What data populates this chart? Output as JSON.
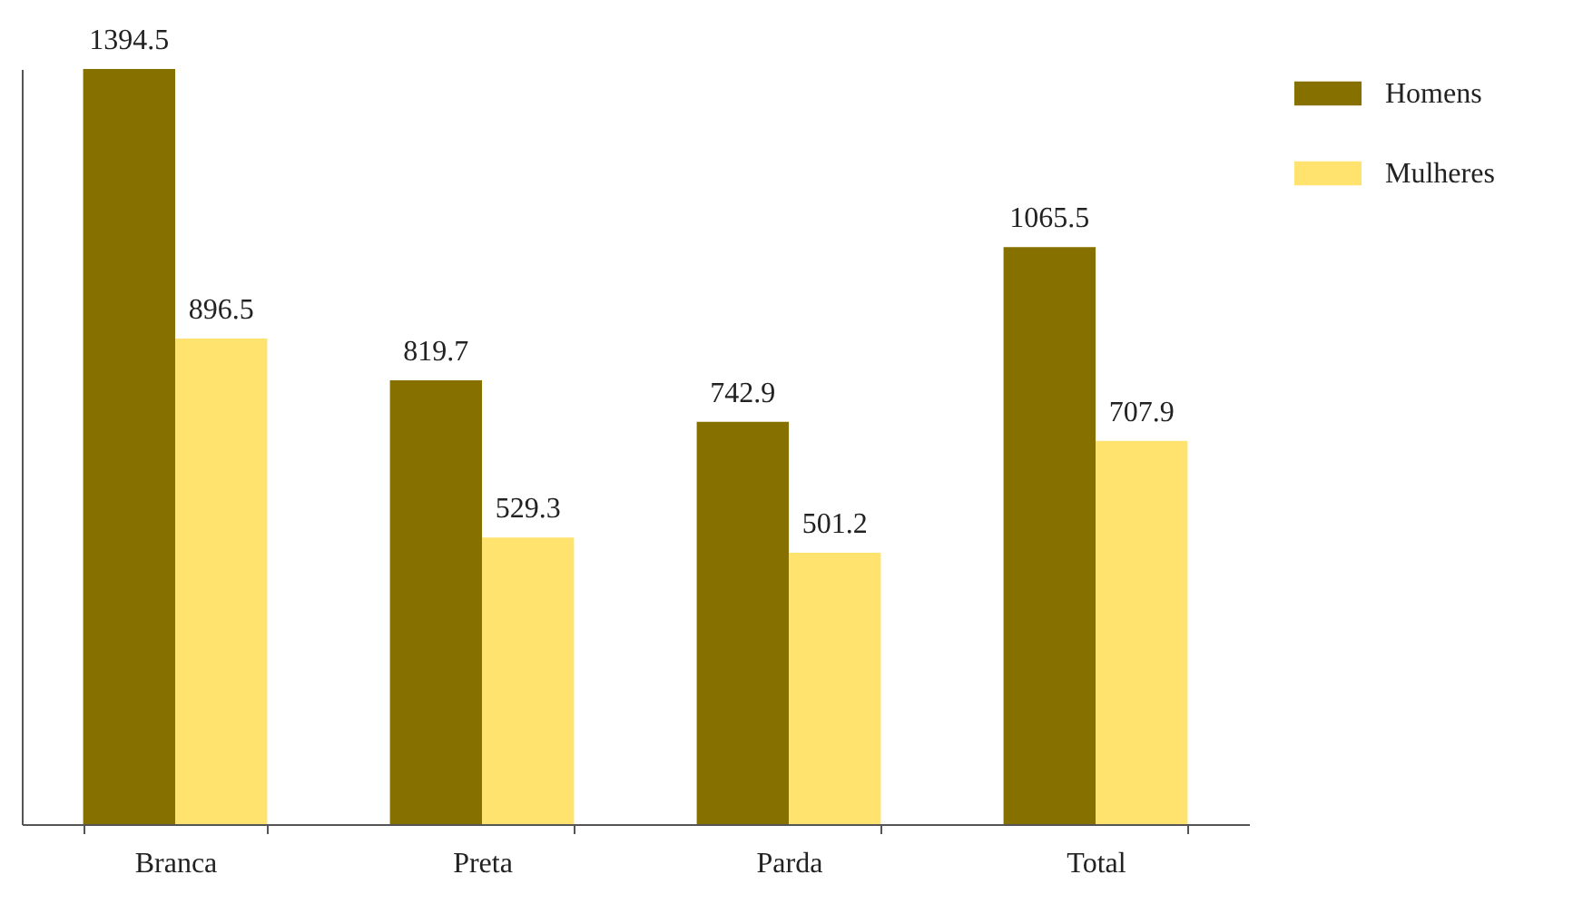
{
  "chart_data": {
    "type": "bar",
    "categories": [
      "Branca",
      "Preta",
      "Parda",
      "Total"
    ],
    "series": [
      {
        "name": "Homens",
        "color": "#857000",
        "values": [
          1394.5,
          819.7,
          742.9,
          1065.5
        ]
      },
      {
        "name": "Mulheres",
        "color": "#ffe36e",
        "values": [
          896.5,
          529.3,
          501.2,
          707.9
        ]
      }
    ],
    "data_labels": true,
    "legend": "top right",
    "grid": false,
    "tick_labels": "x"
  }
}
